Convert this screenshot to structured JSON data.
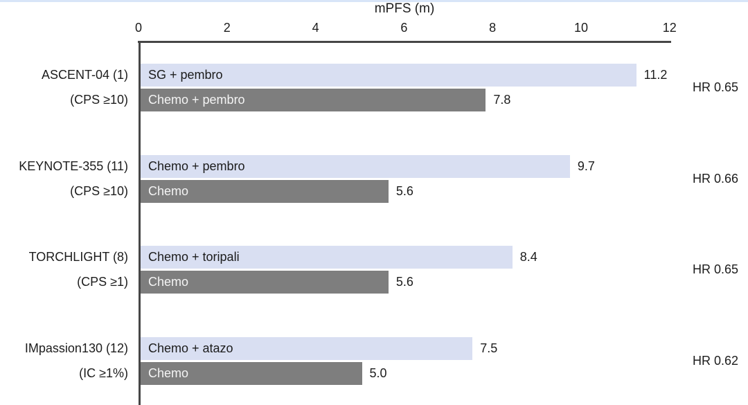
{
  "chart_data": {
    "type": "bar",
    "orientation": "horizontal",
    "title": "mPFS (m)",
    "xlabel": "mPFS (m)",
    "ylabel": "",
    "xlim": [
      0,
      12
    ],
    "x_ticks": [
      0,
      2,
      4,
      6,
      8,
      10,
      12
    ],
    "grid": false,
    "legend": "none (labels inside bars)",
    "colors": {
      "treatment_bar": "#d9dff2",
      "control_bar": "#7e7e7e",
      "text": "#1c1c1c",
      "text_on_dark_bar": "#f4f4f4",
      "axis": "#464646",
      "top_strip": "#d8e5f8"
    },
    "groups": [
      {
        "trial": "ASCENT-04 (1)",
        "criteria": "(CPS ≥10)",
        "hr": "HR 0.65",
        "bars": [
          {
            "label": "SG + pembro",
            "value": 11.2,
            "display": "11.2",
            "role": "treatment"
          },
          {
            "label": "Chemo + pembro",
            "value": 7.8,
            "display": "7.8",
            "role": "control"
          }
        ]
      },
      {
        "trial": "KEYNOTE-355 (11)",
        "criteria": "(CPS ≥10)",
        "hr": "HR 0.66",
        "bars": [
          {
            "label": "Chemo + pembro",
            "value": 9.7,
            "display": "9.7",
            "role": "treatment"
          },
          {
            "label": "Chemo",
            "value": 5.6,
            "display": "5.6",
            "role": "control"
          }
        ]
      },
      {
        "trial": "TORCHLIGHT (8)",
        "criteria": "(CPS ≥1)",
        "hr": "HR 0.65",
        "bars": [
          {
            "label": "Chemo + toripali",
            "value": 8.4,
            "display": "8.4",
            "role": "treatment"
          },
          {
            "label": "Chemo",
            "value": 5.6,
            "display": "5.6",
            "role": "control"
          }
        ]
      },
      {
        "trial": "IMpassion130 (12)",
        "criteria": "(IC ≥1%)",
        "hr": "HR 0.62",
        "bars": [
          {
            "label": "Chemo + atazo",
            "value": 7.5,
            "display": "7.5",
            "role": "treatment"
          },
          {
            "label": "Chemo",
            "value": 5.0,
            "display": "5.0",
            "role": "control"
          }
        ]
      }
    ]
  }
}
